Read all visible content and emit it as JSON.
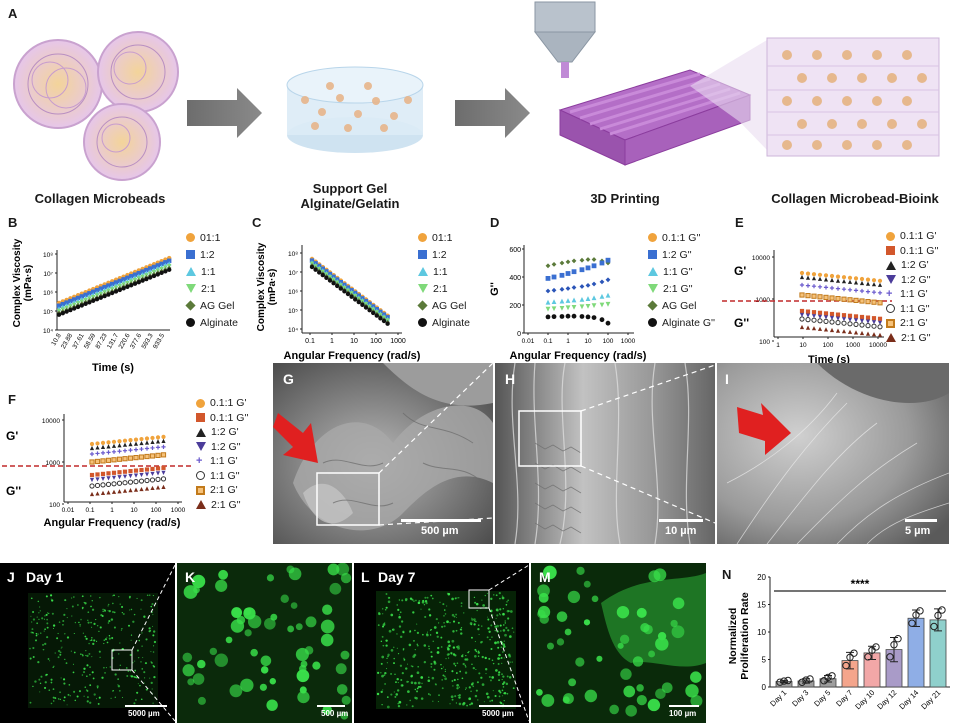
{
  "panels": {
    "A": "A",
    "B": "B",
    "C": "C",
    "D": "D",
    "E": "E",
    "F": "F",
    "G": "G",
    "H": "H",
    "I": "I",
    "J": "J",
    "K": "K",
    "L": "L",
    "M": "M",
    "N": "N"
  },
  "schematic": {
    "collagen_microbeads": "Collagen Microbeads",
    "support_gel_line1": "Support Gel",
    "support_gel_line2": "Alginate/Gelatin",
    "printing": "3D Printing",
    "bioink": "Collagen Microbead-Bioink"
  },
  "sem": {
    "G_scale": "500 µm",
    "H_scale": "10 µm",
    "I_scale": "5 µm"
  },
  "fluorescence": {
    "J_label": "Day 1",
    "L_label": "Day 7",
    "J_scale": "5000 µm",
    "K_scale": "500 µm",
    "L_scale": "5000 µm",
    "M_scale": "100 µm"
  },
  "colors": {
    "c01": "#f0a33c",
    "c12": "#3a6fd1",
    "c11": "#5dc8e0",
    "c21": "#7fd97a",
    "cag": "#5b7a3a",
    "calg": "#111111",
    "red_dash": "#c0282a",
    "fluo_green": "#39e04a"
  },
  "chart_data": [
    {
      "id": "B",
      "type": "scatter",
      "xlabel": "Time (s)",
      "ylabel": "Complex Viscosity (mPa·s)",
      "yaxis_label_line1": "Complex Viscosity",
      "yaxis_label_line2": "(mPa·s)",
      "y_scale": "log",
      "y_ticks": [
        "10⁸",
        "10⁷",
        "10⁶",
        "10⁵",
        "10⁴"
      ],
      "x_ticks": [
        "10.8",
        "23.88",
        "37.61",
        "58.59",
        "87.23",
        "131.7",
        "220.6",
        "377.6",
        "593.3",
        "933.5"
      ],
      "legend": [
        "01:1",
        "1:2",
        "1:1",
        "2:1",
        "AG Gel",
        "Alginate"
      ]
    },
    {
      "id": "C",
      "type": "scatter",
      "xlabel": "Angular Frequency (rad/s)",
      "yaxis_label_line1": "Complex Viscosity",
      "yaxis_label_line2": "(mPa·s)",
      "x_scale": "log",
      "y_scale": "log",
      "x_ticks": [
        "0.1",
        "1",
        "10",
        "100",
        "1000"
      ],
      "y_ticks": [
        "10⁸",
        "10⁷",
        "10⁶",
        "10⁵",
        "10⁴"
      ],
      "legend": [
        "01:1",
        "1:2",
        "1:1",
        "2:1",
        "AG Gel",
        "Alginate"
      ]
    },
    {
      "id": "D",
      "type": "scatter",
      "xlabel": "Angular Frequency (rad/s)",
      "ylabel": "G''",
      "x_scale": "log",
      "x_ticks": [
        "0.01",
        "0.1",
        "1",
        "10",
        "100",
        "1000"
      ],
      "y_ticks": [
        "600",
        "400",
        "200",
        "0"
      ],
      "ylim": [
        0,
        600
      ],
      "legend": [
        "0.1:1 G''",
        "1:2 G''",
        "1:1 G''",
        "2:1 G''",
        "AG Gel",
        "Alginate G''"
      ],
      "series": [
        {
          "name": "AG Gel",
          "x": [
            0.1,
            0.2,
            0.5,
            1,
            2,
            5,
            10,
            20,
            50,
            100
          ],
          "y": [
            480,
            490,
            500,
            508,
            515,
            520,
            525,
            525,
            515,
            500
          ]
        },
        {
          "name": "1:2 G''",
          "x": [
            0.1,
            0.2,
            0.5,
            1,
            2,
            5,
            10,
            20,
            50,
            100
          ],
          "y": [
            390,
            400,
            412,
            425,
            438,
            452,
            465,
            480,
            500,
            520
          ]
        },
        {
          "name": "0.1:1 G''",
          "x": [
            0.1,
            0.2,
            0.5,
            1,
            2,
            5,
            10,
            20,
            50,
            100
          ],
          "y": [
            300,
            305,
            312,
            318,
            325,
            332,
            340,
            350,
            365,
            380
          ]
        },
        {
          "name": "1:1 G''",
          "x": [
            0.1,
            0.2,
            0.5,
            1,
            2,
            5,
            10,
            20,
            50,
            100
          ],
          "y": [
            220,
            224,
            228,
            232,
            236,
            240,
            246,
            252,
            262,
            270
          ]
        },
        {
          "name": "2:1 G''",
          "x": [
            0.1,
            0.2,
            0.5,
            1,
            2,
            5,
            10,
            20,
            50,
            100
          ],
          "y": [
            170,
            173,
            176,
            180,
            183,
            187,
            190,
            195,
            200,
            205
          ]
        },
        {
          "name": "Alginate G''",
          "x": [
            0.1,
            0.2,
            0.5,
            1,
            2,
            5,
            10,
            20,
            50,
            100
          ],
          "y": [
            115,
            117,
            118,
            120,
            120,
            118,
            115,
            110,
            95,
            70
          ]
        }
      ]
    },
    {
      "id": "E",
      "type": "scatter",
      "xlabel": "Time (s)",
      "upper_label": "G'",
      "lower_label": "G''",
      "x_scale": "log",
      "y_scale": "log",
      "x_ticks": [
        "1",
        "10",
        "100",
        "1000",
        "10000"
      ],
      "y_ticks": [
        "10000",
        "1000",
        "100"
      ],
      "legend": [
        "0.1:1 G'",
        "0.1:1 G''",
        "1:2 G'",
        "1:2 G''",
        "1:1 G'",
        "1:1 G''",
        "2:1 G'",
        "2:1 G''"
      ]
    },
    {
      "id": "F",
      "type": "scatter",
      "xlabel": "Angular Frequency (rad/s)",
      "upper_label": "G'",
      "lower_label": "G''",
      "x_scale": "log",
      "y_scale": "log",
      "x_ticks": [
        "0.01",
        "0.1",
        "1",
        "10",
        "100",
        "1000"
      ],
      "y_ticks": [
        "10000",
        "1000",
        "100"
      ],
      "legend": [
        "0.1:1 G'",
        "0.1:1 G''",
        "1:2 G'",
        "1:2 G''",
        "1:1 G'",
        "1:1 G''",
        "2:1 G'",
        "2:1 G''"
      ]
    },
    {
      "id": "N",
      "type": "bar",
      "ylabel": "Normalized Proliferation Rate",
      "ylabel_line1": "Normalized",
      "ylabel_line2": "Proliferation Rate",
      "significance": "****",
      "ylim": [
        0,
        20
      ],
      "y_ticks": [
        "0",
        "5",
        "10",
        "15",
        "20"
      ],
      "categories": [
        "Day 1",
        "Day 3",
        "Day 5",
        "Day 7",
        "Day 10",
        "Day 12",
        "Day 14",
        "Day 21"
      ],
      "values": [
        1.0,
        1.1,
        1.5,
        4.8,
        6.2,
        6.8,
        12.5,
        12.2
      ],
      "errors": [
        0.2,
        0.4,
        0.6,
        1.5,
        1.2,
        2.2,
        1.5,
        2.0
      ],
      "bar_colors": [
        "#9e9e9e",
        "#9e9e9e",
        "#9e9e9e",
        "#f4a58c",
        "#f2a7a7",
        "#a99bc8",
        "#8faee6",
        "#8fd0cc"
      ]
    }
  ]
}
